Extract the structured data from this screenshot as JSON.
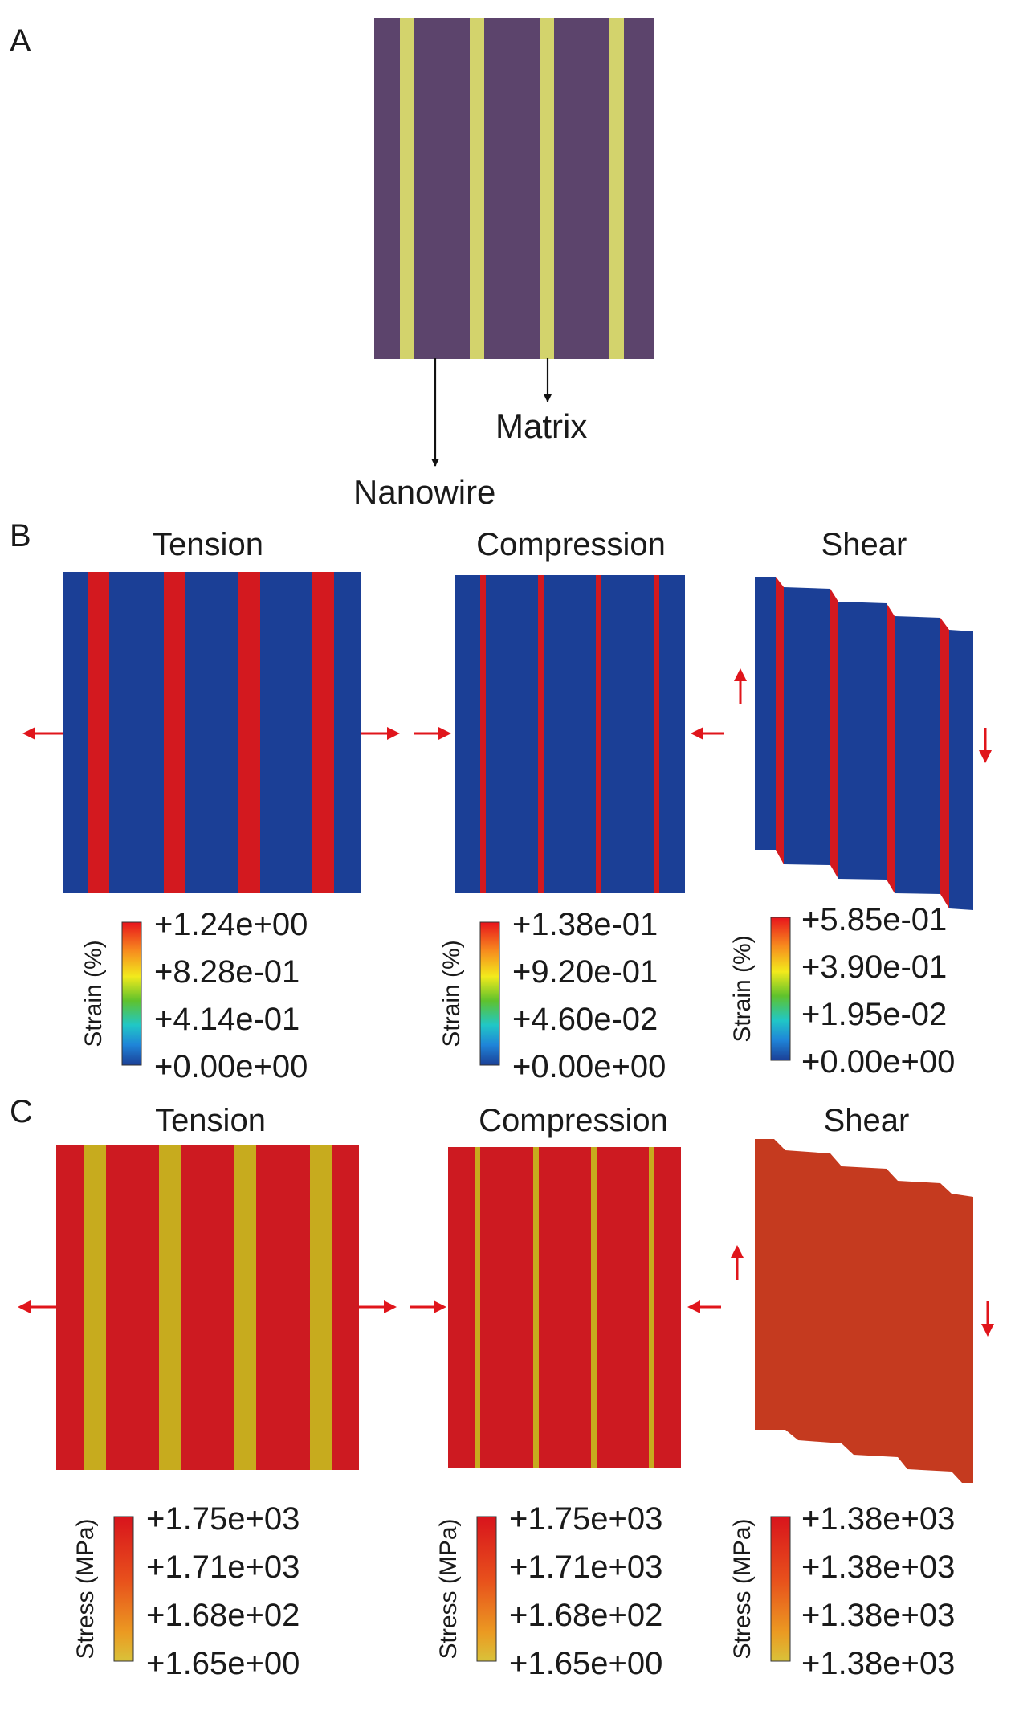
{
  "colors": {
    "matrix_purple": "#5C446C",
    "nanowire_yellow": "#D3D36C",
    "strain_blue": "#1B3F96",
    "strain_red": "#D3191F",
    "stress_red": "#CD1A21",
    "stress_olive": "#C7AB1E",
    "shear_stress": "#C53A1F",
    "arrow": "#E0151B"
  },
  "panel_a": {
    "label": "A",
    "matrix_label": "Matrix",
    "nanowire_label": "Nanowire"
  },
  "panel_b": {
    "label": "B",
    "titles": [
      "Tension",
      "Compression",
      "Shear"
    ],
    "legends": [
      {
        "name": "Strain (%)",
        "ticks": [
          "+1.24e+00",
          "+8.28e-01",
          "+4.14e-01",
          "+0.00e+00"
        ]
      },
      {
        "name": "Strain (%)",
        "ticks": [
          "+1.38e-01",
          "+9.20e-01",
          "+4.60e-02",
          "+0.00e+00"
        ]
      },
      {
        "name": "Strain (%)",
        "ticks": [
          "+5.85e-01",
          "+3.90e-01",
          "+1.95e-02",
          "+0.00e+00"
        ]
      }
    ]
  },
  "panel_c": {
    "label": "C",
    "titles": [
      "Tension",
      "Compression",
      "Shear"
    ],
    "legends": [
      {
        "name": "Stress (MPa)",
        "ticks": [
          "+1.75e+03",
          "+1.71e+03",
          "+1.68e+02",
          "+1.65e+00"
        ]
      },
      {
        "name": "Stress (MPa)",
        "ticks": [
          "+1.75e+03",
          "+1.71e+03",
          "+1.68e+02",
          "+1.65e+00"
        ]
      },
      {
        "name": "Stress (MPa)",
        "ticks": [
          "+1.38e+03",
          "+1.38e+03",
          "+1.38e+03",
          "+1.38e+03"
        ]
      }
    ]
  }
}
